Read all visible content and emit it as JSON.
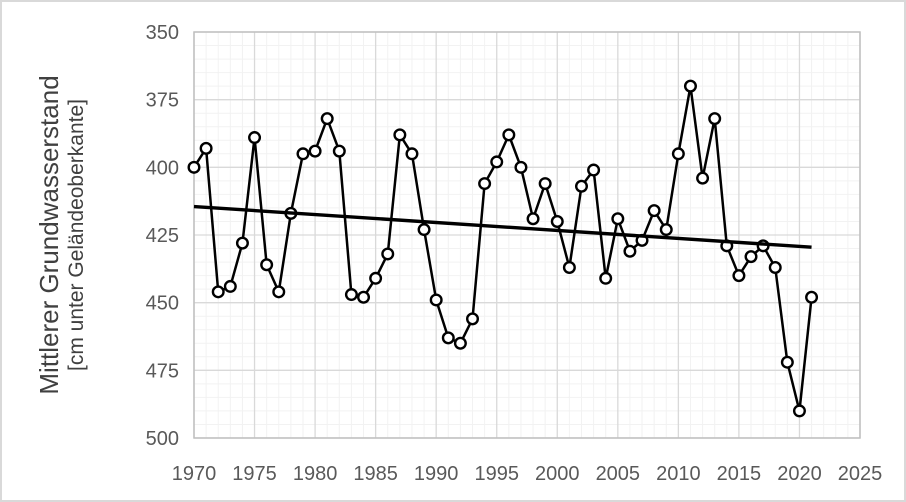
{
  "figure": {
    "background": "#ffffff",
    "frame_border_color": "#d9d9d9"
  },
  "chart_data": {
    "type": "line",
    "title": "",
    "xlabel": "",
    "ylabel_line1": "Mittlerer Grundwasserstand",
    "ylabel_line2": "[cm unter Geländeoberkante]",
    "y_axis_reversed": true,
    "xlim": [
      1970,
      2025
    ],
    "ylim": [
      350,
      500
    ],
    "x_ticks": [
      1970,
      1975,
      1980,
      1985,
      1990,
      1995,
      2000,
      2005,
      2010,
      2015,
      2020,
      2025
    ],
    "y_ticks": [
      350,
      375,
      400,
      425,
      450,
      475,
      500
    ],
    "x_minor_step": 1,
    "y_minor_step": 5,
    "grid": "major+minor",
    "legend": "none",
    "marker": "open-circle",
    "x": [
      1970,
      1971,
      1972,
      1973,
      1974,
      1975,
      1976,
      1977,
      1978,
      1979,
      1980,
      1981,
      1982,
      1983,
      1984,
      1985,
      1986,
      1987,
      1988,
      1989,
      1990,
      1991,
      1992,
      1993,
      1994,
      1995,
      1996,
      1997,
      1998,
      1999,
      2000,
      2001,
      2002,
      2003,
      2004,
      2005,
      2006,
      2007,
      2008,
      2009,
      2010,
      2011,
      2012,
      2013,
      2014,
      2015,
      2016,
      2017,
      2018,
      2019,
      2020,
      2021
    ],
    "series": [
      {
        "name": "Mittlerer Grundwasserstand",
        "values": [
          400,
          393,
          446,
          444,
          428,
          389,
          436,
          446,
          417,
          395,
          394,
          382,
          394,
          447,
          448,
          441,
          432,
          388,
          395,
          423,
          449,
          463,
          465,
          456,
          406,
          398,
          388,
          400,
          419,
          406,
          420,
          437,
          407,
          401,
          441,
          419,
          431,
          427,
          416,
          423,
          395,
          370,
          404,
          382,
          429,
          440,
          433,
          429,
          437,
          472,
          490,
          448
        ],
        "color": "#000000"
      }
    ],
    "trend": {
      "name": "linear-trend",
      "x": [
        1970,
        2021
      ],
      "values": [
        414.5,
        429.5
      ],
      "color": "#000000"
    },
    "colors": {
      "major_grid": "#d9d9d9",
      "minor_grid": "#f2f2f2",
      "plot_border": "#bfbfbf",
      "tick_label": "#595959",
      "axis_title": "#404040",
      "series": "#000000",
      "marker_fill": "#ffffff"
    }
  }
}
